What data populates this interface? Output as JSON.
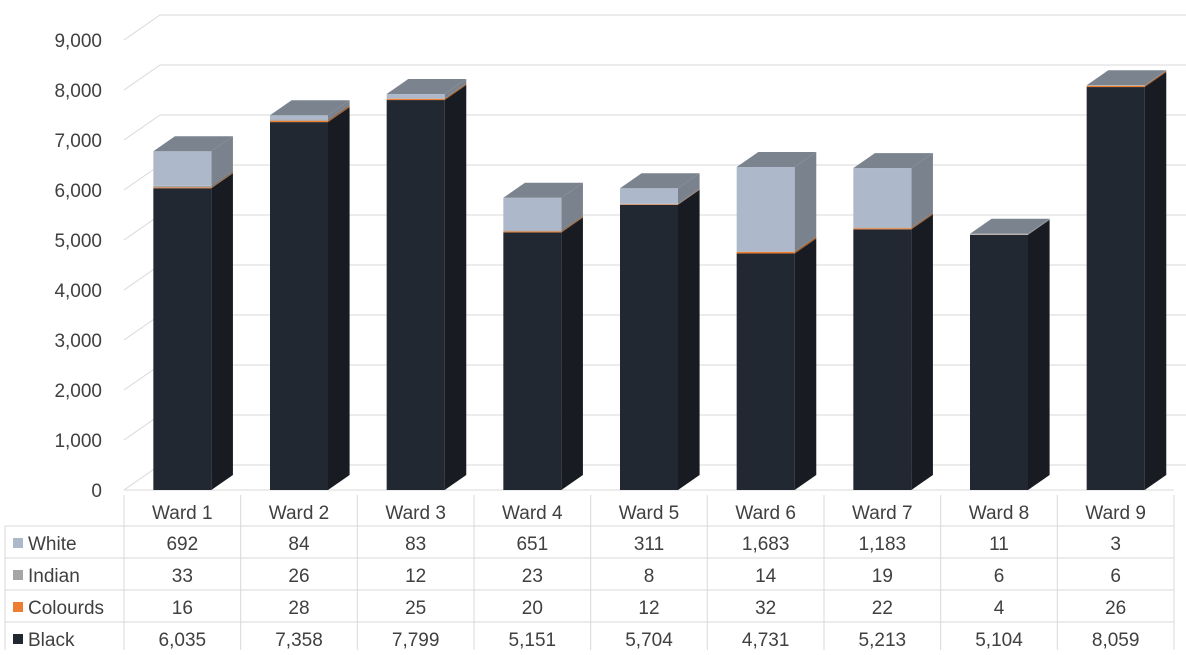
{
  "chart_data": {
    "type": "bar",
    "stacked": true,
    "three_d": true,
    "title": "",
    "xlabel": "",
    "ylabel": "",
    "categories": [
      "Ward 1",
      "Ward 2",
      "Ward 3",
      "Ward 4",
      "Ward 5",
      "Ward 6",
      "Ward 7",
      "Ward 8",
      "Ward 9"
    ],
    "ylim": [
      0,
      9000
    ],
    "yticks": [
      "0",
      "1,000",
      "2,000",
      "3,000",
      "4,000",
      "5,000",
      "6,000",
      "7,000",
      "8,000",
      "9,000"
    ],
    "grid": true,
    "legend": "data-table",
    "series": [
      {
        "name": "Black",
        "color": "#222831",
        "values": [
          6035,
          7358,
          7799,
          5151,
          5704,
          4731,
          5213,
          5104,
          8059
        ],
        "labels": [
          "6,035",
          "7,358",
          "7,799",
          "5,151",
          "5,704",
          "4,731",
          "5,213",
          "5,104",
          "8,059"
        ]
      },
      {
        "name": "Colourds",
        "color": "#ed7d31",
        "values": [
          16,
          28,
          25,
          20,
          12,
          32,
          22,
          4,
          26
        ],
        "labels": [
          "16",
          "28",
          "25",
          "20",
          "12",
          "32",
          "22",
          "4",
          "26"
        ]
      },
      {
        "name": "Indian",
        "color": "#a5a5a5",
        "values": [
          33,
          26,
          12,
          23,
          8,
          14,
          19,
          6,
          6
        ],
        "labels": [
          "33",
          "26",
          "12",
          "23",
          "8",
          "14",
          "19",
          "6",
          "6"
        ]
      },
      {
        "name": "White",
        "color": "#adb9ca",
        "values": [
          692,
          84,
          83,
          651,
          311,
          1683,
          1183,
          11,
          3
        ],
        "labels": [
          "692",
          "84",
          "83",
          "651",
          "311",
          "1,683",
          "1,183",
          "11",
          "3"
        ]
      }
    ],
    "table_order": [
      "White",
      "Indian",
      "Colourds",
      "Black"
    ]
  }
}
